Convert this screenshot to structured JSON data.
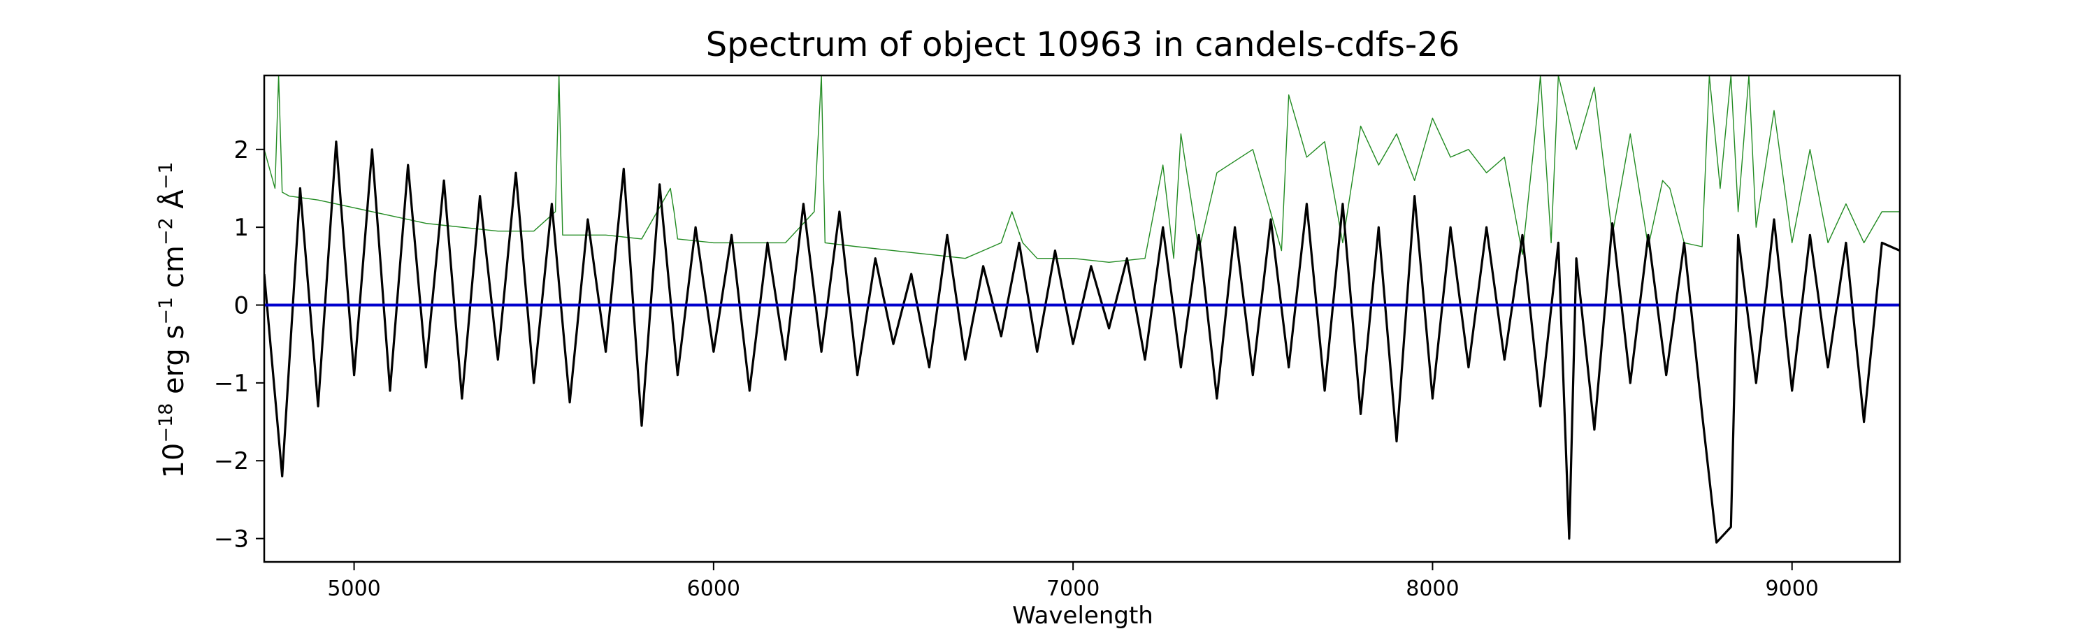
{
  "chart_data": {
    "type": "line",
    "title": "Spectrum of object 10963 in candels-cdfs-26",
    "xlabel": "Wavelength",
    "ylabel": "10$^{-18}$ erg s$^{-1}$ cm$^{-2}$ Å$^{-1}$",
    "ylabel_parts": {
      "base": "10",
      "exp1": "−18",
      "t1": " erg s",
      "exp2": "−1",
      "t2": " cm",
      "exp3": "−2",
      "t3": " Å",
      "exp4": "−1"
    },
    "xlim": [
      4750,
      9300
    ],
    "ylim": [
      -3.3,
      2.95
    ],
    "x_ticks": [
      5000,
      6000,
      7000,
      8000,
      9000
    ],
    "x_tick_labels": [
      "5000",
      "6000",
      "7000",
      "8000",
      "9000"
    ],
    "y_ticks": [
      -3,
      -2,
      -1,
      0,
      1,
      2
    ],
    "y_tick_labels": [
      "−3",
      "−2",
      "−1",
      "0",
      "1",
      "2"
    ],
    "grid": false,
    "colors": {
      "flux": "#000000",
      "error": "#228b22",
      "model": "#0000cd"
    },
    "series": [
      {
        "role": "flux",
        "x": [
          4750,
          4800,
          4850,
          4900,
          4950,
          5000,
          5050,
          5100,
          5150,
          5200,
          5250,
          5300,
          5350,
          5400,
          5450,
          5500,
          5550,
          5600,
          5650,
          5700,
          5750,
          5800,
          5850,
          5900,
          5950,
          6000,
          6050,
          6100,
          6150,
          6200,
          6250,
          6300,
          6350,
          6400,
          6450,
          6500,
          6550,
          6600,
          6650,
          6700,
          6750,
          6800,
          6850,
          6900,
          6950,
          7000,
          7050,
          7100,
          7150,
          7200,
          7250,
          7300,
          7350,
          7400,
          7450,
          7500,
          7550,
          7600,
          7650,
          7700,
          7750,
          7800,
          7850,
          7900,
          7950,
          8000,
          8050,
          8100,
          8150,
          8200,
          8250,
          8300,
          8350,
          8380,
          8400,
          8450,
          8500,
          8550,
          8600,
          8650,
          8700,
          8750,
          8790,
          8830,
          8850,
          8900,
          8950,
          9000,
          9050,
          9100,
          9150,
          9200,
          9250,
          9300
        ],
        "y": [
          0.4,
          -2.2,
          1.5,
          -1.3,
          2.1,
          -0.9,
          2.0,
          -1.1,
          1.8,
          -0.8,
          1.6,
          -1.2,
          1.4,
          -0.7,
          1.7,
          -1.0,
          1.3,
          -1.25,
          1.1,
          -0.6,
          1.75,
          -1.55,
          1.55,
          -0.9,
          1.0,
          -0.6,
          0.9,
          -1.1,
          0.8,
          -0.7,
          1.3,
          -0.6,
          1.2,
          -0.9,
          0.6,
          -0.5,
          0.4,
          -0.8,
          0.9,
          -0.7,
          0.5,
          -0.4,
          0.8,
          -0.6,
          0.7,
          -0.5,
          0.5,
          -0.3,
          0.6,
          -0.7,
          1.0,
          -0.8,
          0.9,
          -1.2,
          1.0,
          -0.9,
          1.1,
          -0.8,
          1.3,
          -1.1,
          1.3,
          -1.4,
          1.0,
          -1.75,
          1.4,
          -1.2,
          1.0,
          -0.8,
          1.0,
          -0.7,
          0.9,
          -1.3,
          0.8,
          -3.0,
          0.6,
          -1.6,
          1.05,
          -1.0,
          0.9,
          -0.9,
          0.8,
          -1.4,
          -3.05,
          -2.85,
          0.9,
          -1.0,
          1.1,
          -1.1,
          0.9,
          -0.8,
          0.8,
          -1.5,
          0.8,
          0.7
        ]
      },
      {
        "role": "error",
        "x": [
          4750,
          4780,
          4790,
          4800,
          4820,
          4900,
          5000,
          5100,
          5200,
          5300,
          5400,
          5500,
          5560,
          5570,
          5580,
          5600,
          5700,
          5800,
          5880,
          5890,
          5900,
          6000,
          6100,
          6200,
          6280,
          6300,
          6310,
          6400,
          6500,
          6600,
          6700,
          6800,
          6830,
          6860,
          6900,
          7000,
          7100,
          7200,
          7250,
          7280,
          7300,
          7350,
          7400,
          7500,
          7580,
          7600,
          7650,
          7700,
          7750,
          7800,
          7850,
          7900,
          7950,
          8000,
          8050,
          8100,
          8150,
          8200,
          8250,
          8290,
          8300,
          8330,
          8350,
          8400,
          8450,
          8500,
          8550,
          8600,
          8640,
          8660,
          8700,
          8750,
          8770,
          8800,
          8830,
          8850,
          8880,
          8900,
          8950,
          9000,
          9050,
          9100,
          9150,
          9200,
          9250,
          9300
        ],
        "y": [
          2.0,
          1.5,
          2.95,
          1.45,
          1.4,
          1.35,
          1.25,
          1.15,
          1.05,
          1.0,
          0.95,
          0.95,
          1.2,
          2.95,
          0.9,
          0.9,
          0.9,
          0.85,
          1.5,
          1.2,
          0.85,
          0.8,
          0.8,
          0.8,
          1.2,
          2.95,
          0.8,
          0.75,
          0.7,
          0.65,
          0.6,
          0.8,
          1.2,
          0.8,
          0.6,
          0.6,
          0.55,
          0.6,
          1.8,
          0.6,
          2.2,
          0.7,
          1.7,
          2.0,
          0.7,
          2.7,
          1.9,
          2.1,
          0.8,
          2.3,
          1.8,
          2.2,
          1.6,
          2.4,
          1.9,
          2.0,
          1.7,
          1.9,
          0.65,
          2.4,
          2.95,
          0.8,
          2.95,
          2.0,
          2.8,
          0.9,
          2.2,
          0.75,
          1.6,
          1.5,
          0.8,
          0.75,
          2.95,
          1.5,
          2.95,
          1.2,
          2.95,
          1.0,
          2.5,
          0.8,
          2.0,
          0.8,
          1.3,
          0.8,
          1.2,
          1.2
        ]
      },
      {
        "role": "model",
        "x": [
          4750,
          9300
        ],
        "y": [
          0.0,
          0.0
        ]
      }
    ]
  }
}
